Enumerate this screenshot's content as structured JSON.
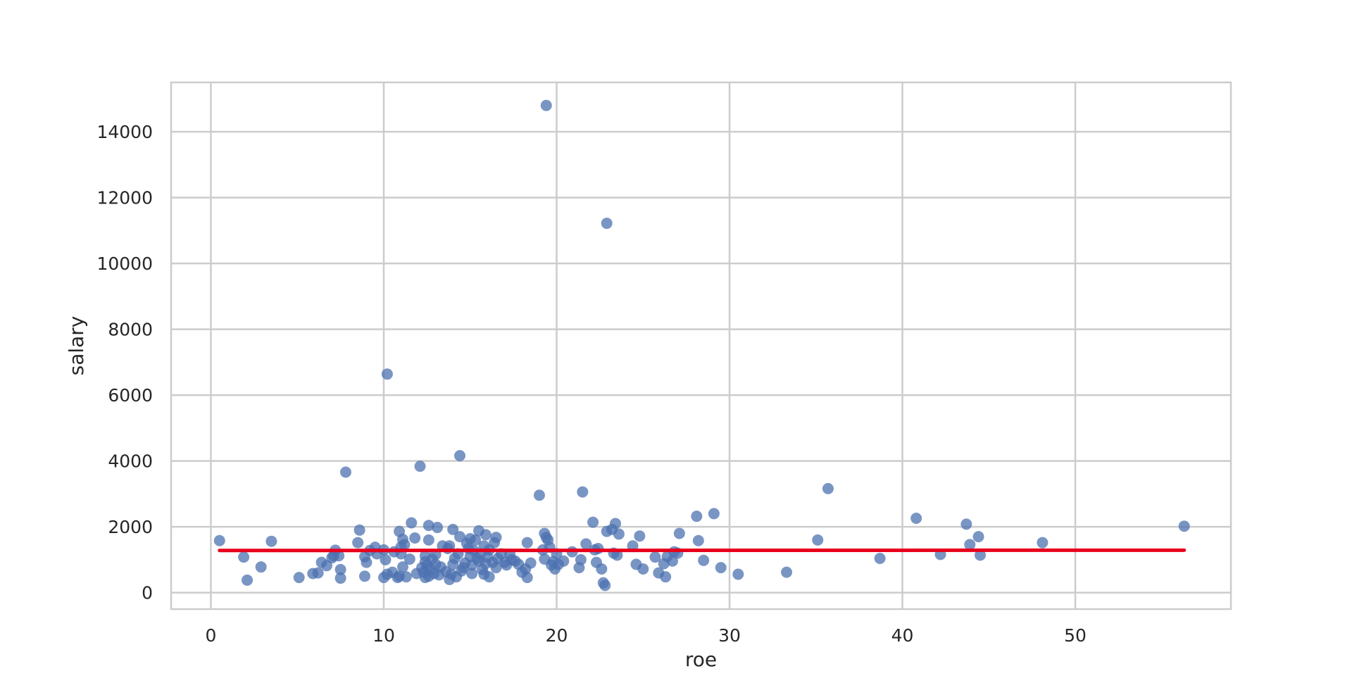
{
  "chart_data": {
    "type": "scatter",
    "title": "",
    "xlabel": "roe",
    "ylabel": "salary",
    "xlim": [
      -2.3,
      59
    ],
    "ylim": [
      -500,
      15500
    ],
    "grid": true,
    "legend": "none",
    "xticks": [
      0,
      10,
      20,
      30,
      40,
      50
    ],
    "xtick_labels": [
      "0",
      "10",
      "20",
      "30",
      "40",
      "50"
    ],
    "yticks": [
      0,
      2000,
      4000,
      6000,
      8000,
      10000,
      12000,
      14000
    ],
    "ytick_labels": [
      "0",
      "2000",
      "4000",
      "6000",
      "8000",
      "10000",
      "12000",
      "14000"
    ],
    "colors": {
      "points": "#4c72b0",
      "fit_line": "#e8001c",
      "grid": "#cccccc",
      "frame": "#cccccc",
      "text": "#262626"
    },
    "series": [
      {
        "type": "scatter",
        "points": [
          [
            0.5,
            1580
          ],
          [
            1.9,
            1080
          ],
          [
            2.1,
            380
          ],
          [
            2.9,
            780
          ],
          [
            3.5,
            1560
          ],
          [
            5.1,
            460
          ],
          [
            5.9,
            580
          ],
          [
            6.2,
            600
          ],
          [
            6.4,
            920
          ],
          [
            6.7,
            820
          ],
          [
            7.0,
            1060
          ],
          [
            7.1,
            1120
          ],
          [
            7.2,
            1290
          ],
          [
            7.4,
            1120
          ],
          [
            7.5,
            700
          ],
          [
            7.5,
            440
          ],
          [
            7.8,
            3660
          ],
          [
            8.5,
            1520
          ],
          [
            8.6,
            1900
          ],
          [
            8.9,
            1090
          ],
          [
            8.9,
            500
          ],
          [
            9.0,
            920
          ],
          [
            9.2,
            1280
          ],
          [
            9.5,
            1380
          ],
          [
            9.6,
            1180
          ],
          [
            10.0,
            1300
          ],
          [
            10.0,
            460
          ],
          [
            10.1,
            1000
          ],
          [
            10.2,
            6640
          ],
          [
            10.2,
            560
          ],
          [
            10.5,
            620
          ],
          [
            10.6,
            1240
          ],
          [
            10.8,
            460
          ],
          [
            10.9,
            1860
          ],
          [
            10.9,
            500
          ],
          [
            11.0,
            1390
          ],
          [
            11.0,
            1180
          ],
          [
            11.1,
            1620
          ],
          [
            11.1,
            780
          ],
          [
            11.2,
            1460
          ],
          [
            11.3,
            480
          ],
          [
            11.5,
            1020
          ],
          [
            11.6,
            2120
          ],
          [
            11.8,
            1660
          ],
          [
            11.9,
            580
          ],
          [
            12.1,
            3840
          ],
          [
            12.2,
            760
          ],
          [
            12.3,
            620
          ],
          [
            12.4,
            1120
          ],
          [
            12.4,
            940
          ],
          [
            12.4,
            460
          ],
          [
            12.5,
            820
          ],
          [
            12.6,
            2040
          ],
          [
            12.6,
            1600
          ],
          [
            12.6,
            500
          ],
          [
            12.7,
            720
          ],
          [
            12.8,
            1020
          ],
          [
            12.9,
            580
          ],
          [
            13.0,
            860
          ],
          [
            13.0,
            1160
          ],
          [
            13.1,
            1980
          ],
          [
            13.2,
            540
          ],
          [
            13.3,
            780
          ],
          [
            13.4,
            1420
          ],
          [
            13.6,
            640
          ],
          [
            13.7,
            1340
          ],
          [
            13.8,
            1420
          ],
          [
            13.8,
            400
          ],
          [
            13.9,
            560
          ],
          [
            14.0,
            860
          ],
          [
            14.0,
            1920
          ],
          [
            14.1,
            1040
          ],
          [
            14.2,
            480
          ],
          [
            14.3,
            1180
          ],
          [
            14.4,
            4160
          ],
          [
            14.4,
            1700
          ],
          [
            14.5,
            660
          ],
          [
            14.6,
            760
          ],
          [
            14.7,
            900
          ],
          [
            14.8,
            1500
          ],
          [
            14.9,
            1340
          ],
          [
            15.0,
            1640
          ],
          [
            15.0,
            1100
          ],
          [
            15.1,
            580
          ],
          [
            15.1,
            840
          ],
          [
            15.2,
            1280
          ],
          [
            15.3,
            1600
          ],
          [
            15.4,
            1040
          ],
          [
            15.5,
            1880
          ],
          [
            15.5,
            960
          ],
          [
            15.6,
            1180
          ],
          [
            15.7,
            700
          ],
          [
            15.8,
            1420
          ],
          [
            15.8,
            560
          ],
          [
            15.9,
            1760
          ],
          [
            15.9,
            880
          ],
          [
            16.0,
            1080
          ],
          [
            16.1,
            480
          ],
          [
            16.1,
            1300
          ],
          [
            16.3,
            920
          ],
          [
            16.4,
            1520
          ],
          [
            16.5,
            1680
          ],
          [
            16.5,
            760
          ],
          [
            16.6,
            1040
          ],
          [
            16.8,
            1180
          ],
          [
            17.0,
            920
          ],
          [
            17.1,
            840
          ],
          [
            17.3,
            1160
          ],
          [
            17.4,
            1000
          ],
          [
            17.6,
            960
          ],
          [
            17.8,
            860
          ],
          [
            18.0,
            620
          ],
          [
            18.2,
            720
          ],
          [
            18.3,
            460
          ],
          [
            18.3,
            1520
          ],
          [
            18.5,
            900
          ],
          [
            19.0,
            2960
          ],
          [
            19.2,
            1300
          ],
          [
            19.3,
            1020
          ],
          [
            19.3,
            1800
          ],
          [
            19.4,
            1680
          ],
          [
            19.5,
            1600
          ],
          [
            19.4,
            14800
          ],
          [
            19.6,
            1380
          ],
          [
            19.7,
            840
          ],
          [
            19.8,
            940
          ],
          [
            19.9,
            720
          ],
          [
            20.0,
            1180
          ],
          [
            20.1,
            860
          ],
          [
            20.4,
            960
          ],
          [
            20.9,
            1240
          ],
          [
            21.3,
            760
          ],
          [
            21.4,
            1000
          ],
          [
            21.5,
            3060
          ],
          [
            21.7,
            1480
          ],
          [
            22.1,
            2140
          ],
          [
            22.2,
            1300
          ],
          [
            22.3,
            920
          ],
          [
            22.4,
            1340
          ],
          [
            22.6,
            720
          ],
          [
            22.7,
            300
          ],
          [
            22.8,
            220
          ],
          [
            22.9,
            1860
          ],
          [
            22.9,
            11220
          ],
          [
            23.2,
            1920
          ],
          [
            23.3,
            1200
          ],
          [
            23.4,
            2100
          ],
          [
            23.5,
            1140
          ],
          [
            23.6,
            1780
          ],
          [
            24.4,
            1420
          ],
          [
            24.6,
            860
          ],
          [
            24.8,
            1720
          ],
          [
            25.0,
            720
          ],
          [
            25.7,
            1080
          ],
          [
            25.9,
            600
          ],
          [
            26.2,
            880
          ],
          [
            26.3,
            480
          ],
          [
            26.4,
            1100
          ],
          [
            26.7,
            960
          ],
          [
            26.8,
            1240
          ],
          [
            27.0,
            1200
          ],
          [
            27.1,
            1800
          ],
          [
            28.1,
            2320
          ],
          [
            28.2,
            1580
          ],
          [
            28.5,
            980
          ],
          [
            29.1,
            2400
          ],
          [
            29.5,
            760
          ],
          [
            30.5,
            560
          ],
          [
            33.3,
            620
          ],
          [
            35.1,
            1600
          ],
          [
            35.7,
            3160
          ],
          [
            38.7,
            1040
          ],
          [
            40.8,
            2260
          ],
          [
            42.2,
            1160
          ],
          [
            43.7,
            2080
          ],
          [
            43.9,
            1460
          ],
          [
            44.4,
            1700
          ],
          [
            44.5,
            1140
          ],
          [
            48.1,
            1520
          ],
          [
            56.3,
            2020
          ]
        ]
      },
      {
        "type": "line",
        "points": [
          [
            0.5,
            1280
          ],
          [
            56.3,
            1290
          ]
        ]
      }
    ]
  }
}
